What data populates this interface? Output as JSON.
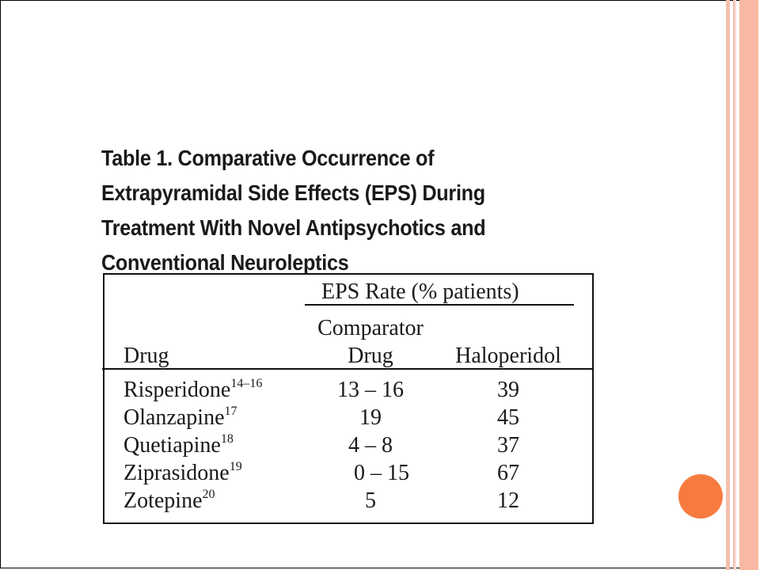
{
  "table": {
    "title_lines": [
      "Table 1. Comparative Occurrence of",
      "Extrapyramidal Side Effects (EPS) During",
      "Treatment With Novel Antipsychotics and",
      "Conventional Neuroleptics"
    ],
    "group_header": "EPS Rate (% patients)",
    "col_drug": "Drug",
    "col_comparator_line1": "Comparator",
    "col_comparator_line2": "Drug",
    "col_haloperidol": "Haloperidol",
    "rows": [
      {
        "drug": "Risperidone",
        "ref": "14–16",
        "comparator": "13 – 16",
        "haloperidol": "39"
      },
      {
        "drug": "Olanzapine",
        "ref": "17",
        "comparator": "19",
        "haloperidol": "45"
      },
      {
        "drug": "Quetiapine",
        "ref": "18",
        "comparator": "4 – 8",
        "haloperidol": "37"
      },
      {
        "drug": "Ziprasidone",
        "ref": "19",
        "comparator": "0 – 15",
        "haloperidol": "67"
      },
      {
        "drug": "Zotepine",
        "ref": "20",
        "comparator": "5",
        "haloperidol": "12"
      }
    ]
  },
  "decor": {
    "accent_circle_color": "#f77b3f",
    "stripe_color": "#f7b9a1"
  }
}
